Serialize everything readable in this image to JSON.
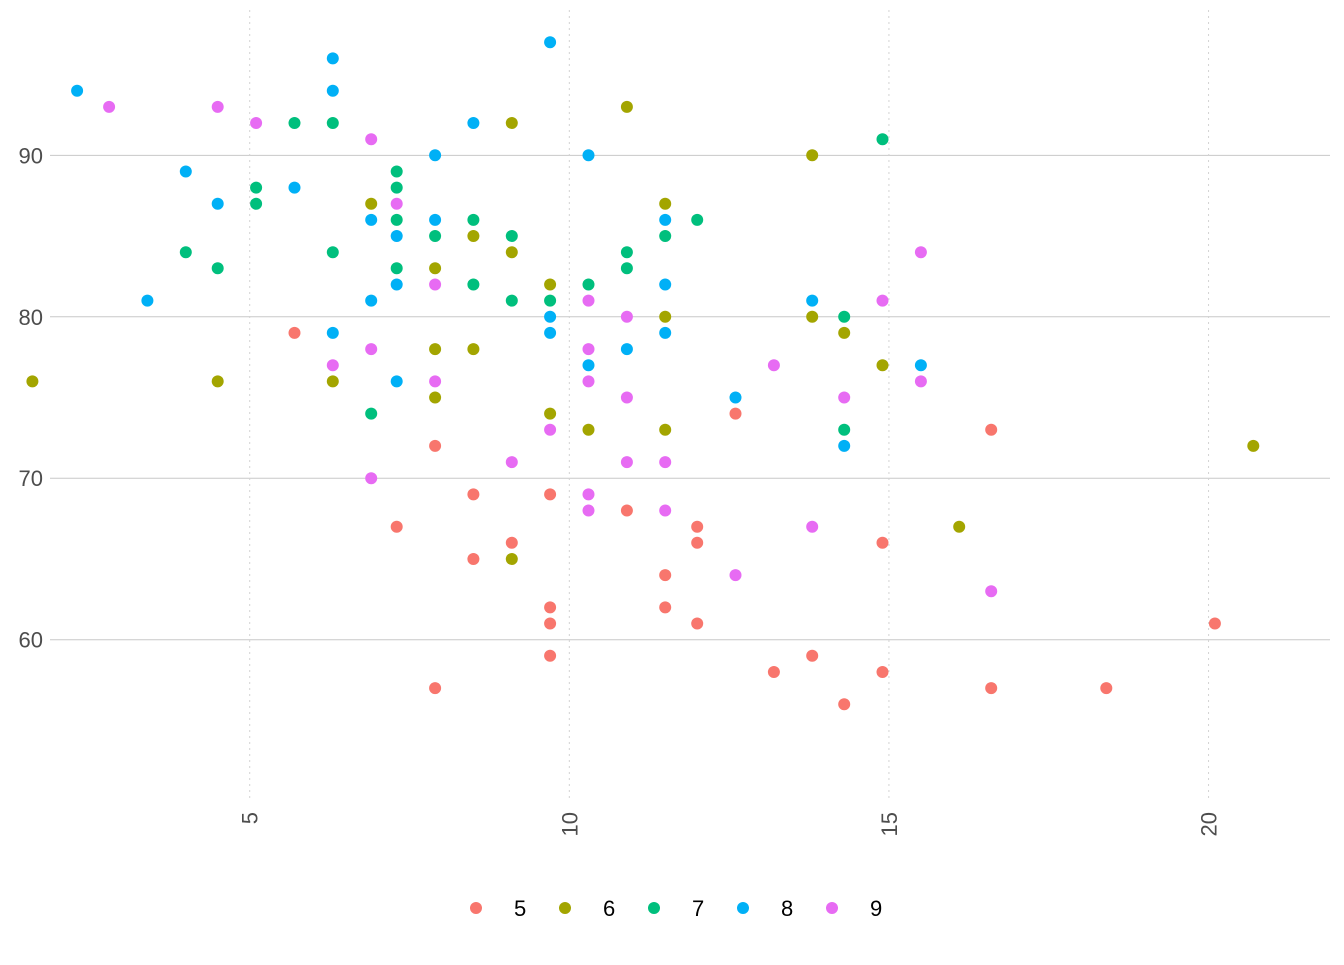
{
  "chart_data": {
    "type": "scatter",
    "title": "",
    "xlabel": "",
    "ylabel": "",
    "xlim": [
      1.25,
      21.9
    ],
    "ylim": [
      51,
      99
    ],
    "x_ticks": [
      {
        "value": 5,
        "label": "5"
      },
      {
        "value": 10,
        "label": "10"
      },
      {
        "value": 15,
        "label": "15"
      },
      {
        "value": 20,
        "label": "20"
      }
    ],
    "y_ticks": [
      {
        "value": 60,
        "label": "60"
      },
      {
        "value": 70,
        "label": "70"
      },
      {
        "value": 80,
        "label": "80"
      },
      {
        "value": 90,
        "label": "90"
      }
    ],
    "grid": true,
    "legend_position": "bottom",
    "series": [
      {
        "name": "5",
        "color": "#F8766D",
        "points": [
          [
            5.7,
            79
          ],
          [
            7.3,
            67
          ],
          [
            7.9,
            72
          ],
          [
            7.9,
            57
          ],
          [
            8.5,
            69
          ],
          [
            8.5,
            65
          ],
          [
            9.1,
            66
          ],
          [
            9.7,
            69
          ],
          [
            9.7,
            62
          ],
          [
            9.7,
            61
          ],
          [
            9.7,
            59
          ],
          [
            10.9,
            68
          ],
          [
            11.5,
            64
          ],
          [
            11.5,
            62
          ],
          [
            12.0,
            67
          ],
          [
            12.0,
            66
          ],
          [
            12.0,
            61
          ],
          [
            12.6,
            74
          ],
          [
            13.2,
            58
          ],
          [
            13.8,
            59
          ],
          [
            14.3,
            56
          ],
          [
            14.9,
            66
          ],
          [
            14.9,
            58
          ],
          [
            16.6,
            73
          ],
          [
            16.6,
            57
          ],
          [
            18.4,
            57
          ],
          [
            20.1,
            61
          ]
        ]
      },
      {
        "name": "6",
        "color": "#A3A500",
        "points": [
          [
            1.6,
            76
          ],
          [
            4.5,
            76
          ],
          [
            6.3,
            76
          ],
          [
            6.9,
            87
          ],
          [
            7.9,
            83
          ],
          [
            7.9,
            78
          ],
          [
            7.9,
            75
          ],
          [
            8.5,
            85
          ],
          [
            8.5,
            78
          ],
          [
            9.1,
            92
          ],
          [
            9.1,
            84
          ],
          [
            9.1,
            65
          ],
          [
            9.7,
            82
          ],
          [
            9.7,
            74
          ],
          [
            10.3,
            73
          ],
          [
            10.9,
            93
          ],
          [
            11.5,
            87
          ],
          [
            11.5,
            80
          ],
          [
            11.5,
            73
          ],
          [
            13.8,
            90
          ],
          [
            13.8,
            80
          ],
          [
            14.3,
            79
          ],
          [
            14.9,
            77
          ],
          [
            16.1,
            67
          ],
          [
            20.7,
            72
          ]
        ]
      },
      {
        "name": "7",
        "color": "#00BF7D",
        "points": [
          [
            4.0,
            84
          ],
          [
            4.5,
            83
          ],
          [
            5.1,
            88
          ],
          [
            5.1,
            87
          ],
          [
            5.7,
            92
          ],
          [
            6.3,
            92
          ],
          [
            6.3,
            84
          ],
          [
            6.9,
            74
          ],
          [
            7.3,
            89
          ],
          [
            7.3,
            88
          ],
          [
            7.3,
            86
          ],
          [
            7.3,
            83
          ],
          [
            7.9,
            85
          ],
          [
            8.5,
            86
          ],
          [
            8.5,
            82
          ],
          [
            9.1,
            85
          ],
          [
            9.1,
            81
          ],
          [
            9.7,
            81
          ],
          [
            10.3,
            82
          ],
          [
            10.9,
            84
          ],
          [
            10.9,
            83
          ],
          [
            11.5,
            85
          ],
          [
            12.0,
            86
          ],
          [
            14.3,
            80
          ],
          [
            14.3,
            73
          ],
          [
            14.9,
            91
          ]
        ]
      },
      {
        "name": "8",
        "color": "#00B0F6",
        "points": [
          [
            2.3,
            94
          ],
          [
            3.4,
            81
          ],
          [
            4.0,
            89
          ],
          [
            4.5,
            87
          ],
          [
            5.7,
            88
          ],
          [
            6.3,
            96
          ],
          [
            6.3,
            94
          ],
          [
            6.3,
            79
          ],
          [
            6.9,
            86
          ],
          [
            6.9,
            81
          ],
          [
            7.3,
            85
          ],
          [
            7.3,
            82
          ],
          [
            7.3,
            76
          ],
          [
            7.9,
            90
          ],
          [
            7.9,
            86
          ],
          [
            8.5,
            92
          ],
          [
            9.7,
            97
          ],
          [
            9.7,
            80
          ],
          [
            9.7,
            79
          ],
          [
            10.3,
            90
          ],
          [
            10.3,
            77
          ],
          [
            10.9,
            78
          ],
          [
            11.5,
            86
          ],
          [
            11.5,
            82
          ],
          [
            11.5,
            79
          ],
          [
            12.6,
            75
          ],
          [
            13.8,
            81
          ],
          [
            14.3,
            72
          ],
          [
            15.5,
            77
          ]
        ]
      },
      {
        "name": "9",
        "color": "#E76BF3",
        "points": [
          [
            2.8,
            93
          ],
          [
            4.5,
            93
          ],
          [
            5.1,
            92
          ],
          [
            6.3,
            77
          ],
          [
            6.9,
            91
          ],
          [
            6.9,
            78
          ],
          [
            6.9,
            70
          ],
          [
            7.3,
            87
          ],
          [
            7.9,
            82
          ],
          [
            7.9,
            76
          ],
          [
            9.1,
            71
          ],
          [
            9.7,
            73
          ],
          [
            10.3,
            81
          ],
          [
            10.3,
            78
          ],
          [
            10.3,
            76
          ],
          [
            10.3,
            69
          ],
          [
            10.3,
            68
          ],
          [
            10.9,
            80
          ],
          [
            10.9,
            75
          ],
          [
            10.9,
            71
          ],
          [
            11.5,
            71
          ],
          [
            11.5,
            68
          ],
          [
            12.6,
            64
          ],
          [
            13.2,
            77
          ],
          [
            13.8,
            67
          ],
          [
            14.3,
            75
          ],
          [
            14.9,
            81
          ],
          [
            15.5,
            84
          ],
          [
            15.5,
            76
          ],
          [
            16.6,
            63
          ]
        ]
      }
    ]
  }
}
